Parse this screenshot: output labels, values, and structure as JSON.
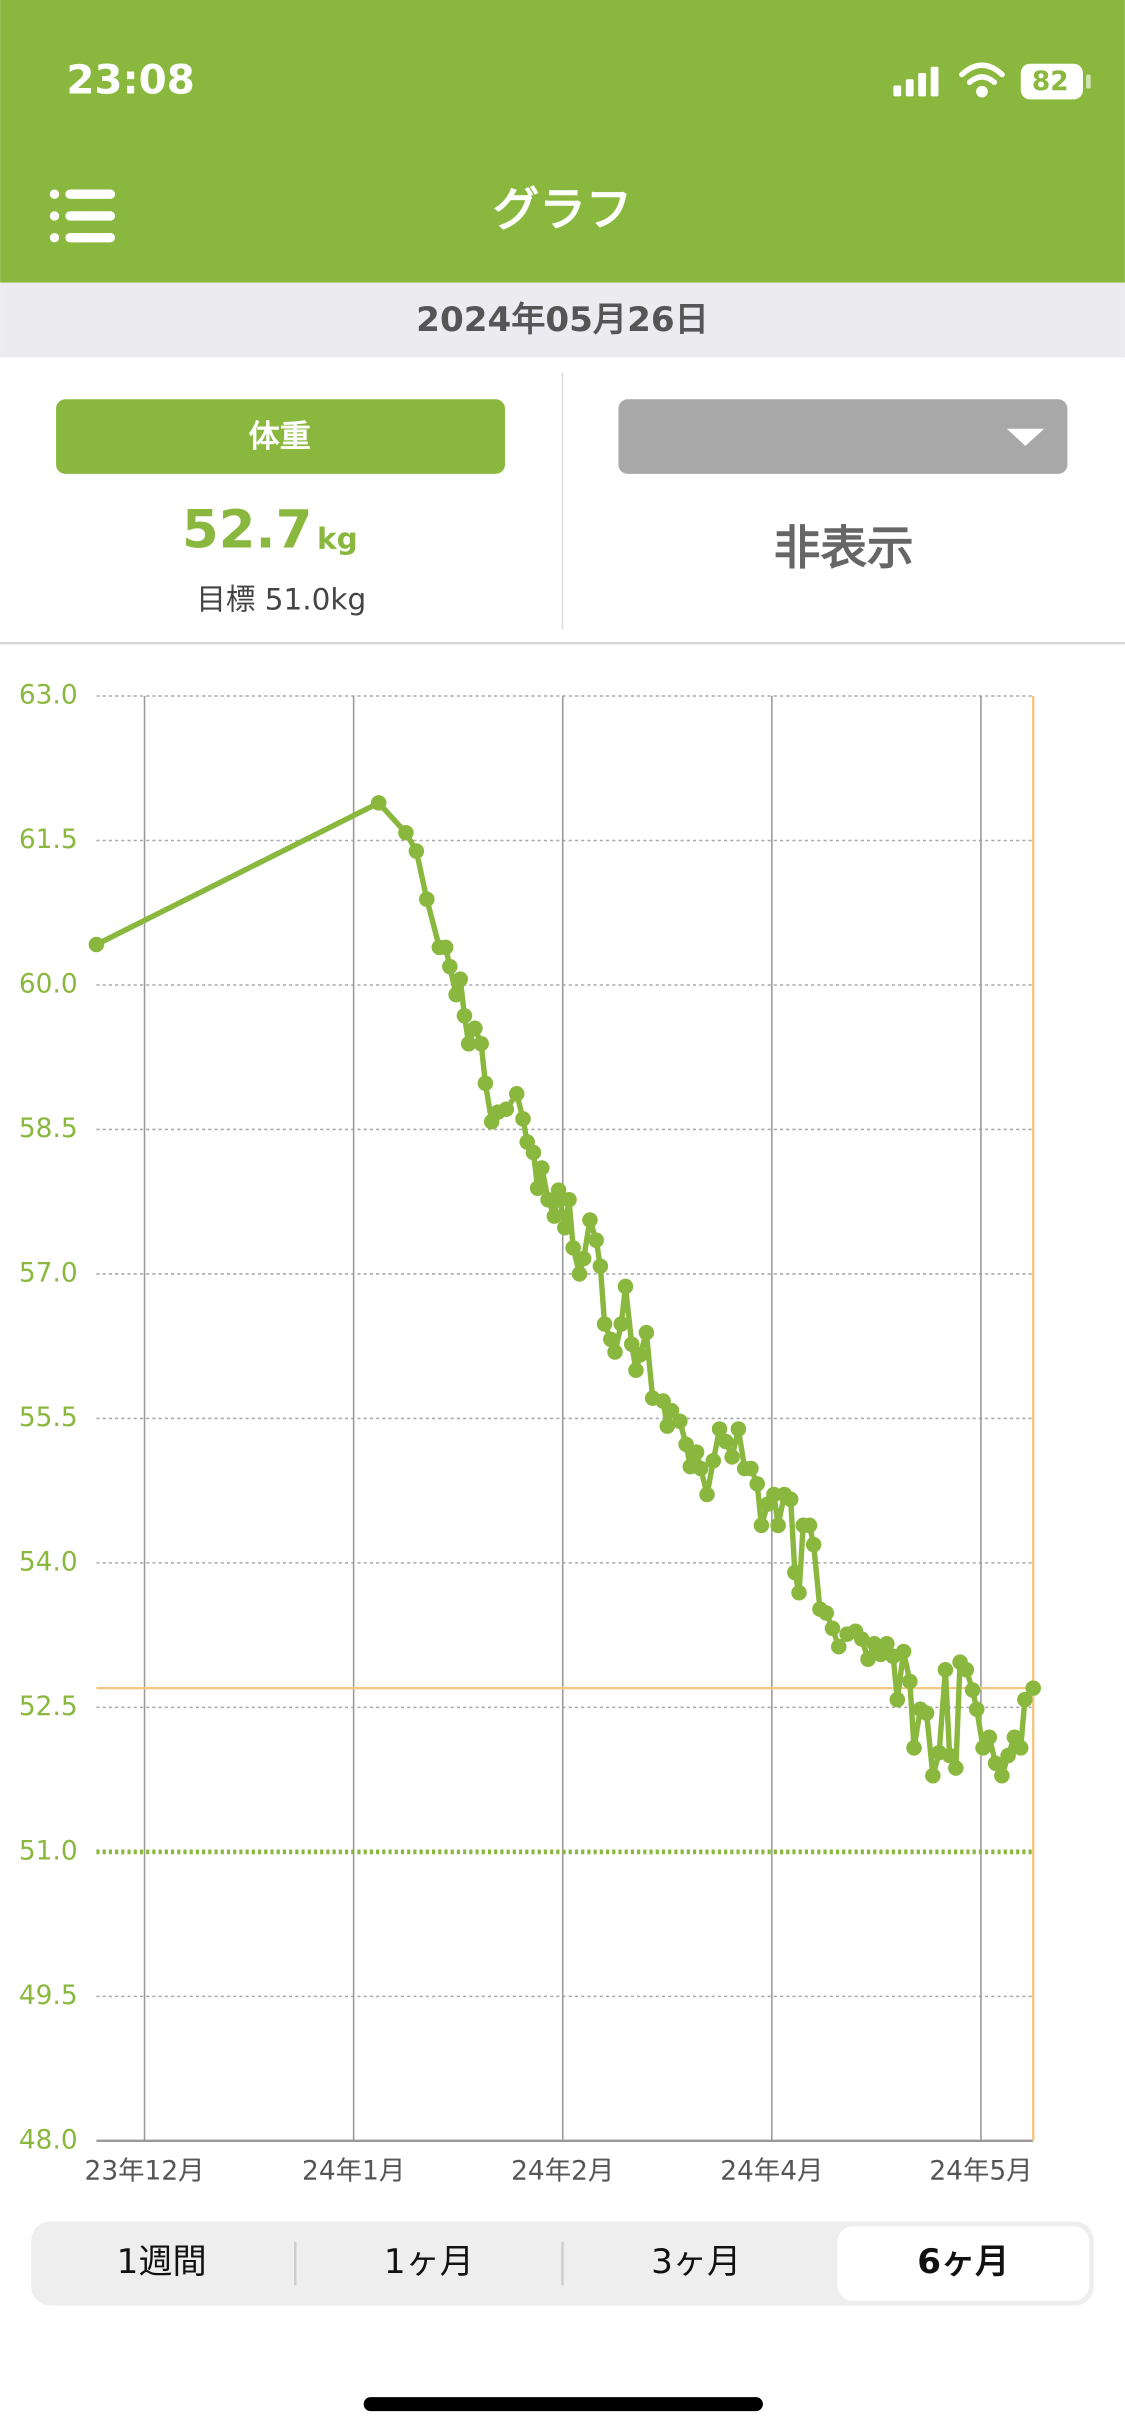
{
  "status_bar": {
    "time": "23:08",
    "battery": "82"
  },
  "header": {
    "title": "グラフ"
  },
  "date": "2024年05月26日",
  "left_card": {
    "button": "体重",
    "value": "52.7",
    "unit": "kg",
    "goal": "目標 51.0kg"
  },
  "right_card": {
    "value": "非表示"
  },
  "chart_data": {
    "type": "line",
    "x": [
      -0.23,
      1.12,
      1.25,
      1.3,
      1.35,
      1.41,
      1.44,
      1.46,
      1.49,
      1.51,
      1.53,
      1.55,
      1.58,
      1.61,
      1.63,
      1.66,
      1.69,
      1.73,
      1.78,
      1.81,
      1.83,
      1.86,
      1.88,
      1.9,
      1.93,
      1.96,
      1.98,
      2.01,
      2.03,
      2.05,
      2.08,
      2.1,
      2.13,
      2.16,
      2.18,
      2.2,
      2.23,
      2.25,
      2.28,
      2.3,
      2.33,
      2.35,
      2.37,
      2.4,
      2.43,
      2.48,
      2.5,
      2.52,
      2.56,
      2.59,
      2.61,
      2.64,
      2.66,
      2.69,
      2.72,
      2.75,
      2.78,
      2.81,
      2.84,
      2.87,
      2.9,
      2.93,
      2.95,
      2.98,
      3.01,
      3.03,
      3.06,
      3.09,
      3.11,
      3.13,
      3.15,
      3.18,
      3.2,
      3.23,
      3.26,
      3.29,
      3.32,
      3.36,
      3.4,
      3.43,
      3.46,
      3.49,
      3.52,
      3.55,
      3.58,
      3.6,
      3.63,
      3.66,
      3.68,
      3.71,
      3.74,
      3.77,
      3.8,
      3.83,
      3.85,
      3.88,
      3.9,
      3.93,
      3.96,
      3.98,
      4.01,
      4.04,
      4.07,
      4.1,
      4.13,
      4.16,
      4.19,
      4.21,
      4.25
    ],
    "series": [
      {
        "color": "#8ab83f",
        "values": [
          60.42,
          61.89,
          61.58,
          61.39,
          60.89,
          60.39,
          60.39,
          60.19,
          59.9,
          60.06,
          59.68,
          59.39,
          59.55,
          59.39,
          58.98,
          58.58,
          58.68,
          58.71,
          58.87,
          58.61,
          58.37,
          58.26,
          57.89,
          58.1,
          57.77,
          57.6,
          57.87,
          57.48,
          57.77,
          57.27,
          57.0,
          57.16,
          57.56,
          57.35,
          57.08,
          56.48,
          56.32,
          56.19,
          56.48,
          56.87,
          56.27,
          56.0,
          56.16,
          56.39,
          55.71,
          55.68,
          55.42,
          55.58,
          55.47,
          55.23,
          55.0,
          55.15,
          54.98,
          54.71,
          55.06,
          55.39,
          55.26,
          55.1,
          55.39,
          54.98,
          54.98,
          54.82,
          54.39,
          54.61,
          54.71,
          54.39,
          54.71,
          54.66,
          53.9,
          53.69,
          54.39,
          54.39,
          54.19,
          53.52,
          53.48,
          53.32,
          53.13,
          53.26,
          53.29,
          53.21,
          53.0,
          53.16,
          53.05,
          53.16,
          53.03,
          52.58,
          53.08,
          52.77,
          52.08,
          52.48,
          52.44,
          51.79,
          52.03,
          52.89,
          52.0,
          51.87,
          52.97,
          52.89,
          52.68,
          52.48,
          52.08,
          52.19,
          51.92,
          51.79,
          52.0,
          52.19,
          52.08,
          52.58,
          52.7
        ]
      }
    ],
    "xlim": [
      -0.23,
      4.25
    ],
    "xticks": [
      {
        "value": 0,
        "label": "23年12月"
      },
      {
        "value": 1,
        "label": "24年1月"
      },
      {
        "value": 2,
        "label": "24年2月"
      },
      {
        "value": 3,
        "label": "24年4月"
      },
      {
        "value": 4,
        "label": "24年5月"
      }
    ],
    "ylim": [
      48,
      63
    ],
    "yticks": [
      {
        "value": 48,
        "label": "48.0"
      },
      {
        "value": 49.5,
        "label": "49.5"
      },
      {
        "value": 51,
        "label": "51.0"
      },
      {
        "value": 52.5,
        "label": "52.5"
      },
      {
        "value": 54,
        "label": "54.0"
      },
      {
        "value": 55.5,
        "label": "55.5"
      },
      {
        "value": 57,
        "label": "57.0"
      },
      {
        "value": 58.5,
        "label": "58.5"
      },
      {
        "value": 60,
        "label": "60.0"
      },
      {
        "value": 61.5,
        "label": "61.5"
      },
      {
        "value": 63,
        "label": "63.0"
      }
    ],
    "grid": true,
    "reference_lines": [
      {
        "value": 52.7,
        "color": "#f5c77e",
        "style": "solid"
      },
      {
        "value": 51,
        "color": "#8ab83f",
        "style": "dotted"
      }
    ]
  },
  "tabs": [
    "1週間",
    "1ヶ月",
    "3ヶ月",
    "6ヶ月"
  ],
  "selected_tab": 3
}
